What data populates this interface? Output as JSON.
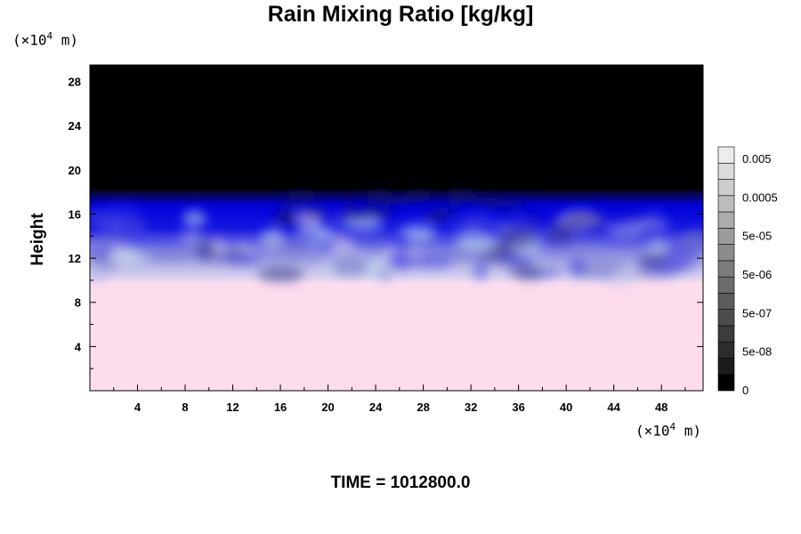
{
  "chart_data": {
    "type": "heatmap",
    "title": "Rain Mixing Ratio [kg/kg]",
    "xlabel": "",
    "ylabel": "Height",
    "x_unit": "(×10",
    "x_unit_exp": "4",
    "x_unit_suffix": " m)",
    "y_unit": "(×10",
    "y_unit_exp": "4",
    "y_unit_suffix": " m)",
    "xlim": [
      0,
      51.5
    ],
    "ylim": [
      0,
      29.5
    ],
    "x_ticks": [
      4,
      8,
      12,
      16,
      20,
      24,
      28,
      32,
      36,
      40,
      44,
      48
    ],
    "y_ticks": [
      4,
      8,
      12,
      16,
      20,
      24,
      28
    ],
    "colorbar": {
      "labels": [
        "0.005",
        "0.0005",
        "5e-05",
        "5e-06",
        "5e-07",
        "5e-08",
        "0"
      ],
      "colors": [
        "#000000",
        "#1c1c1c",
        "#2c2c2c",
        "#3c3c3c",
        "#4c4c4c",
        "#5c5c5c",
        "#6c6c6c",
        "#7c7c7c",
        "#8c8c8c",
        "#9c9c9c",
        "#acacac",
        "#bcbcbc",
        "#cccccc",
        "#dcdcdc",
        "#ececec"
      ]
    },
    "annotation": "TIME = 1012800.0"
  },
  "colors": {
    "upper": "#000000",
    "band": "#0000d8",
    "transition": "#9fa0e6",
    "lower": "#fddcee"
  }
}
